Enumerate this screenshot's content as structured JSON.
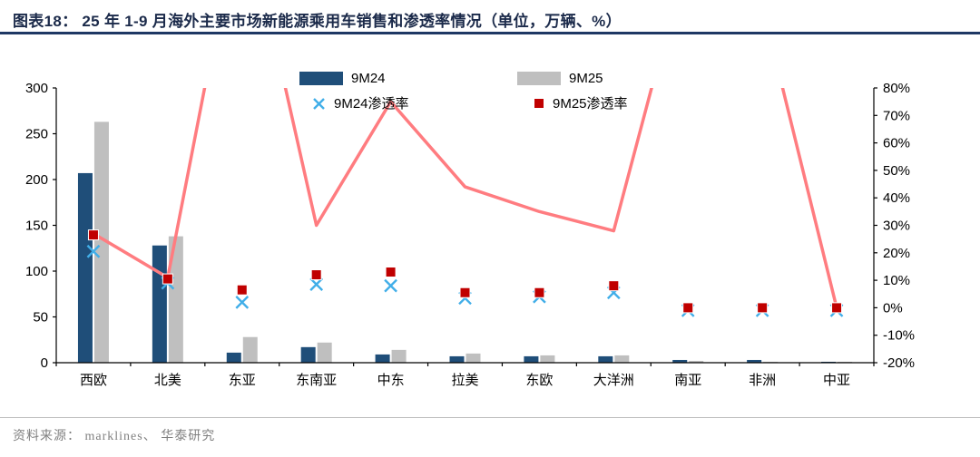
{
  "header": {
    "title": "图表18：  25 年 1-9 月海外主要市场新能源乘用车销售和渗透率情况（单位，万辆、%）"
  },
  "chart_data": {
    "type": "bar",
    "subtype": "combo-bar-scatter-line",
    "title": "25 年 1-9 月海外主要市场新能源乘用车销售和渗透率情况",
    "unit": "万辆、%",
    "categories": [
      "西欧",
      "北美",
      "东亚",
      "东南亚",
      "中东",
      "拉美",
      "东欧",
      "大洋洲",
      "南亚",
      "非洲",
      "中亚"
    ],
    "series": [
      {
        "name": "9M24",
        "kind": "bar",
        "axis": "left",
        "color": "#1F4E79",
        "values": [
          207,
          128,
          11,
          17,
          9,
          7,
          7,
          7,
          3,
          3,
          1
        ]
      },
      {
        "name": "9M25",
        "kind": "bar",
        "axis": "left",
        "color": "#BFBFBF",
        "values": [
          263,
          138,
          28,
          22,
          14,
          10,
          8,
          8,
          2,
          1,
          1
        ]
      },
      {
        "name": "9M24渗透率",
        "kind": "scatter-x",
        "axis": "right",
        "color": "#41AEE8",
        "values": [
          20.5,
          9,
          2,
          8.5,
          8,
          3.5,
          4,
          5.5,
          -1,
          -1,
          -1
        ]
      },
      {
        "name": "9M25渗透率",
        "kind": "scatter-square",
        "axis": "right",
        "color": "#C00000",
        "values": [
          26.5,
          10.5,
          6.5,
          12,
          13,
          5.5,
          5.5,
          8,
          0,
          0,
          0
        ]
      },
      {
        "name": "",
        "kind": "line",
        "axis": "right",
        "color": "#FF7C80",
        "values": [
          27,
          11,
          150,
          30,
          75,
          44,
          35,
          28,
          130,
          110,
          0
        ]
      }
    ],
    "left_axis": {
      "min": 0,
      "max": 300,
      "ticks": [
        0,
        50,
        100,
        150,
        200,
        250,
        300
      ]
    },
    "right_axis": {
      "min": -20,
      "max": 80,
      "ticks": [
        -20,
        -10,
        0,
        10,
        20,
        30,
        40,
        50,
        60,
        70,
        80
      ],
      "format": "percent"
    },
    "legend": {
      "position": "top-center",
      "items": [
        "9M24",
        "9M25",
        "9M24渗透率",
        "9M25渗透率"
      ]
    },
    "grid": false
  },
  "footer": {
    "source": "资料来源： marklines、 华泰研究"
  }
}
